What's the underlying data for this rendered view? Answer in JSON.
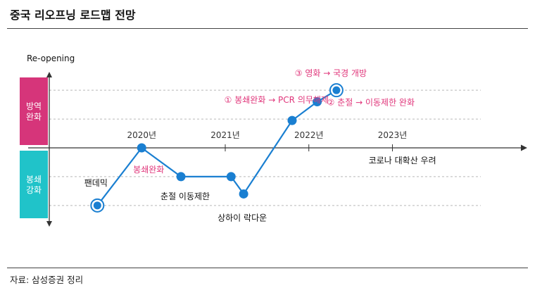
{
  "header": {
    "title": "중국 리오프닝 로드맵 전망"
  },
  "footer": {
    "source": "자료: 삼성증권 정리"
  },
  "colors": {
    "line": "#1a7fd1",
    "upper_band": "#d6357a",
    "lower_band": "#20c3c9",
    "highlight_text": "#e0357a"
  },
  "chart_data": {
    "type": "line",
    "title": "중국 리오프닝 로드맵 전망",
    "ylabel": "Re-opening",
    "upper_band_label": [
      "방역",
      "완화"
    ],
    "lower_band_label": [
      "봉쇄",
      "강화"
    ],
    "x_ticks": [
      "2020년",
      "2021년",
      "2022년",
      "2023년"
    ],
    "x_tick_values": [
      2020.0,
      2021.0,
      2022.0,
      2023.0
    ],
    "xlim": [
      2019.4,
      2024.2
    ],
    "ylim": [
      -2.2,
      2.2
    ],
    "grid": true,
    "points": [
      {
        "x": 2019.47,
        "y": -2.0,
        "label": "팬데믹",
        "label_pos": "above-left",
        "highlight": false,
        "ring": true
      },
      {
        "x": 2020.0,
        "y": 0.0,
        "label": "봉쇄완화",
        "label_pos": "below",
        "highlight": true,
        "ring": false
      },
      {
        "x": 2020.47,
        "y": -1.0,
        "label": "춘절 이동제한",
        "label_pos": "below",
        "highlight": false,
        "ring": false
      },
      {
        "x": 2021.07,
        "y": -1.0,
        "label": "",
        "label_pos": "",
        "highlight": false,
        "ring": false
      },
      {
        "x": 2021.22,
        "y": -1.6,
        "label": "상하이 락다운",
        "label_pos": "below",
        "highlight": false,
        "ring": false
      },
      {
        "x": 2021.8,
        "y": 0.95,
        "label": "① 봉쇄완화 → PCR 의무해제",
        "label_pos": "above-left",
        "highlight": true,
        "ring": false
      },
      {
        "x": 2022.1,
        "y": 1.6,
        "label": "② 춘절 → 이동제한 완화",
        "label_pos": "right",
        "highlight": true,
        "ring": false
      },
      {
        "x": 2022.33,
        "y": 2.0,
        "label": "③ 영화 → 국경 개방",
        "label_pos": "above",
        "highlight": true,
        "ring": true
      }
    ],
    "annotations": [
      {
        "text": "코로나 대확산 우려",
        "x": 2022.85,
        "y": -0.4
      }
    ]
  }
}
